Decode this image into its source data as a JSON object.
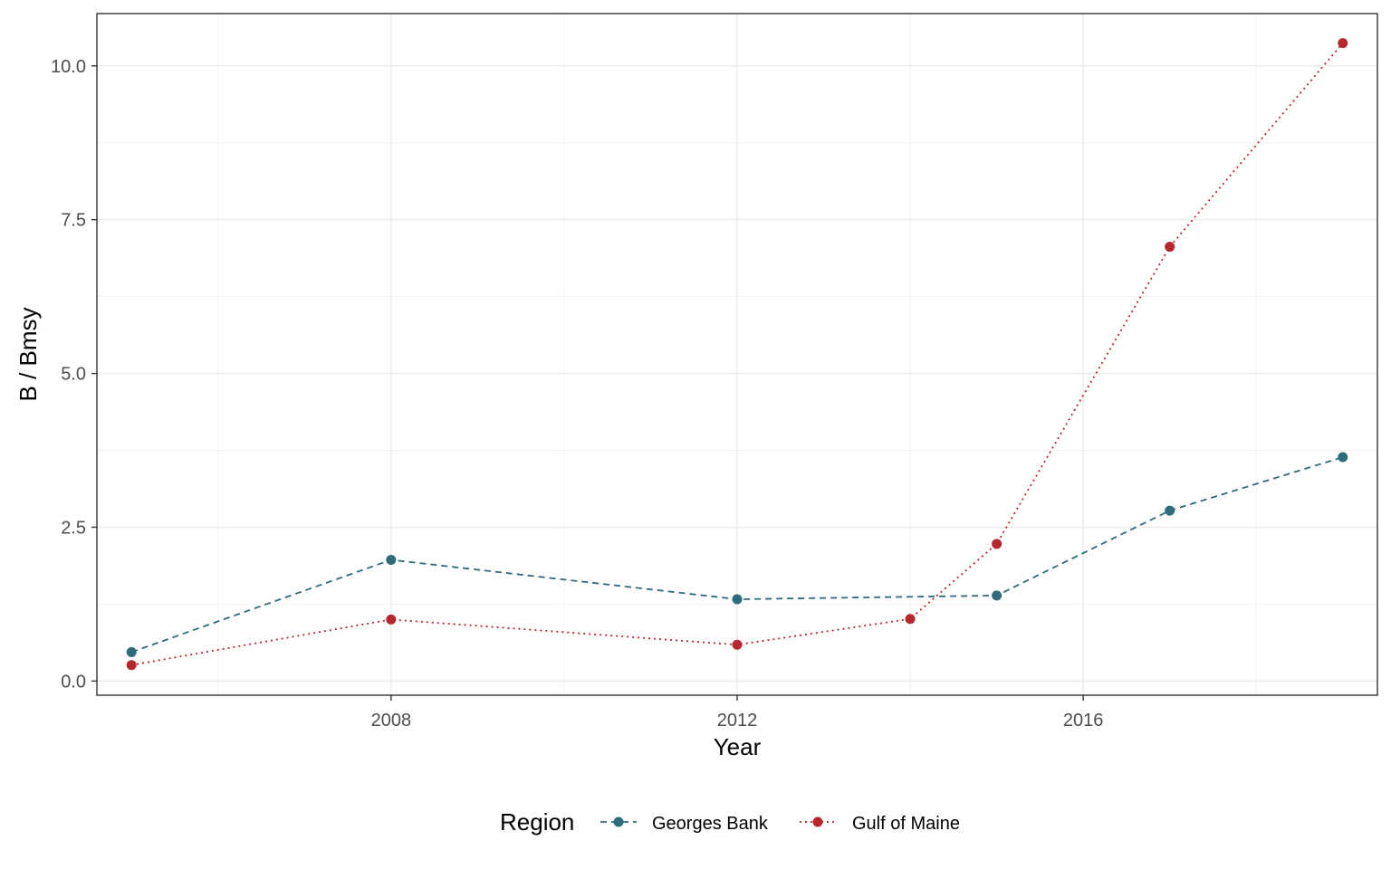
{
  "chart_data": {
    "type": "line",
    "title": "",
    "xlabel": "Year",
    "ylabel": "B / Bmsy",
    "xlim": [
      2004.6,
      2019.4
    ],
    "ylim": [
      -0.23,
      10.85
    ],
    "x_ticks": [
      2008,
      2012,
      2016
    ],
    "x_tick_labels": [
      "2008",
      "2012",
      "2016"
    ],
    "x_minor_ticks": [
      2006,
      2010,
      2014,
      2018
    ],
    "y_ticks": [
      0,
      2.5,
      5,
      7.5,
      10
    ],
    "y_tick_labels": [
      "0.0",
      "2.5",
      "5.0",
      "7.5",
      "10.0"
    ],
    "y_minor_ticks": [
      1.25,
      3.75,
      6.25,
      8.75
    ],
    "grid": true,
    "legend": {
      "title": "Region",
      "position": "bottom"
    },
    "series": [
      {
        "name": "Georges Bank",
        "color": "#2e6b7c",
        "line_style": "dashed",
        "x": [
          2005,
          2008,
          2012,
          2015,
          2017,
          2019
        ],
        "values": [
          0.47,
          1.97,
          1.33,
          1.39,
          2.77,
          3.64
        ]
      },
      {
        "name": "Gulf of Maine",
        "color": "#b5272d",
        "line_style": "dotted",
        "x": [
          2005,
          2008,
          2012,
          2014,
          2015,
          2017,
          2019
        ],
        "values": [
          0.26,
          1.0,
          0.59,
          1.01,
          2.23,
          7.06,
          10.37
        ]
      }
    ]
  }
}
